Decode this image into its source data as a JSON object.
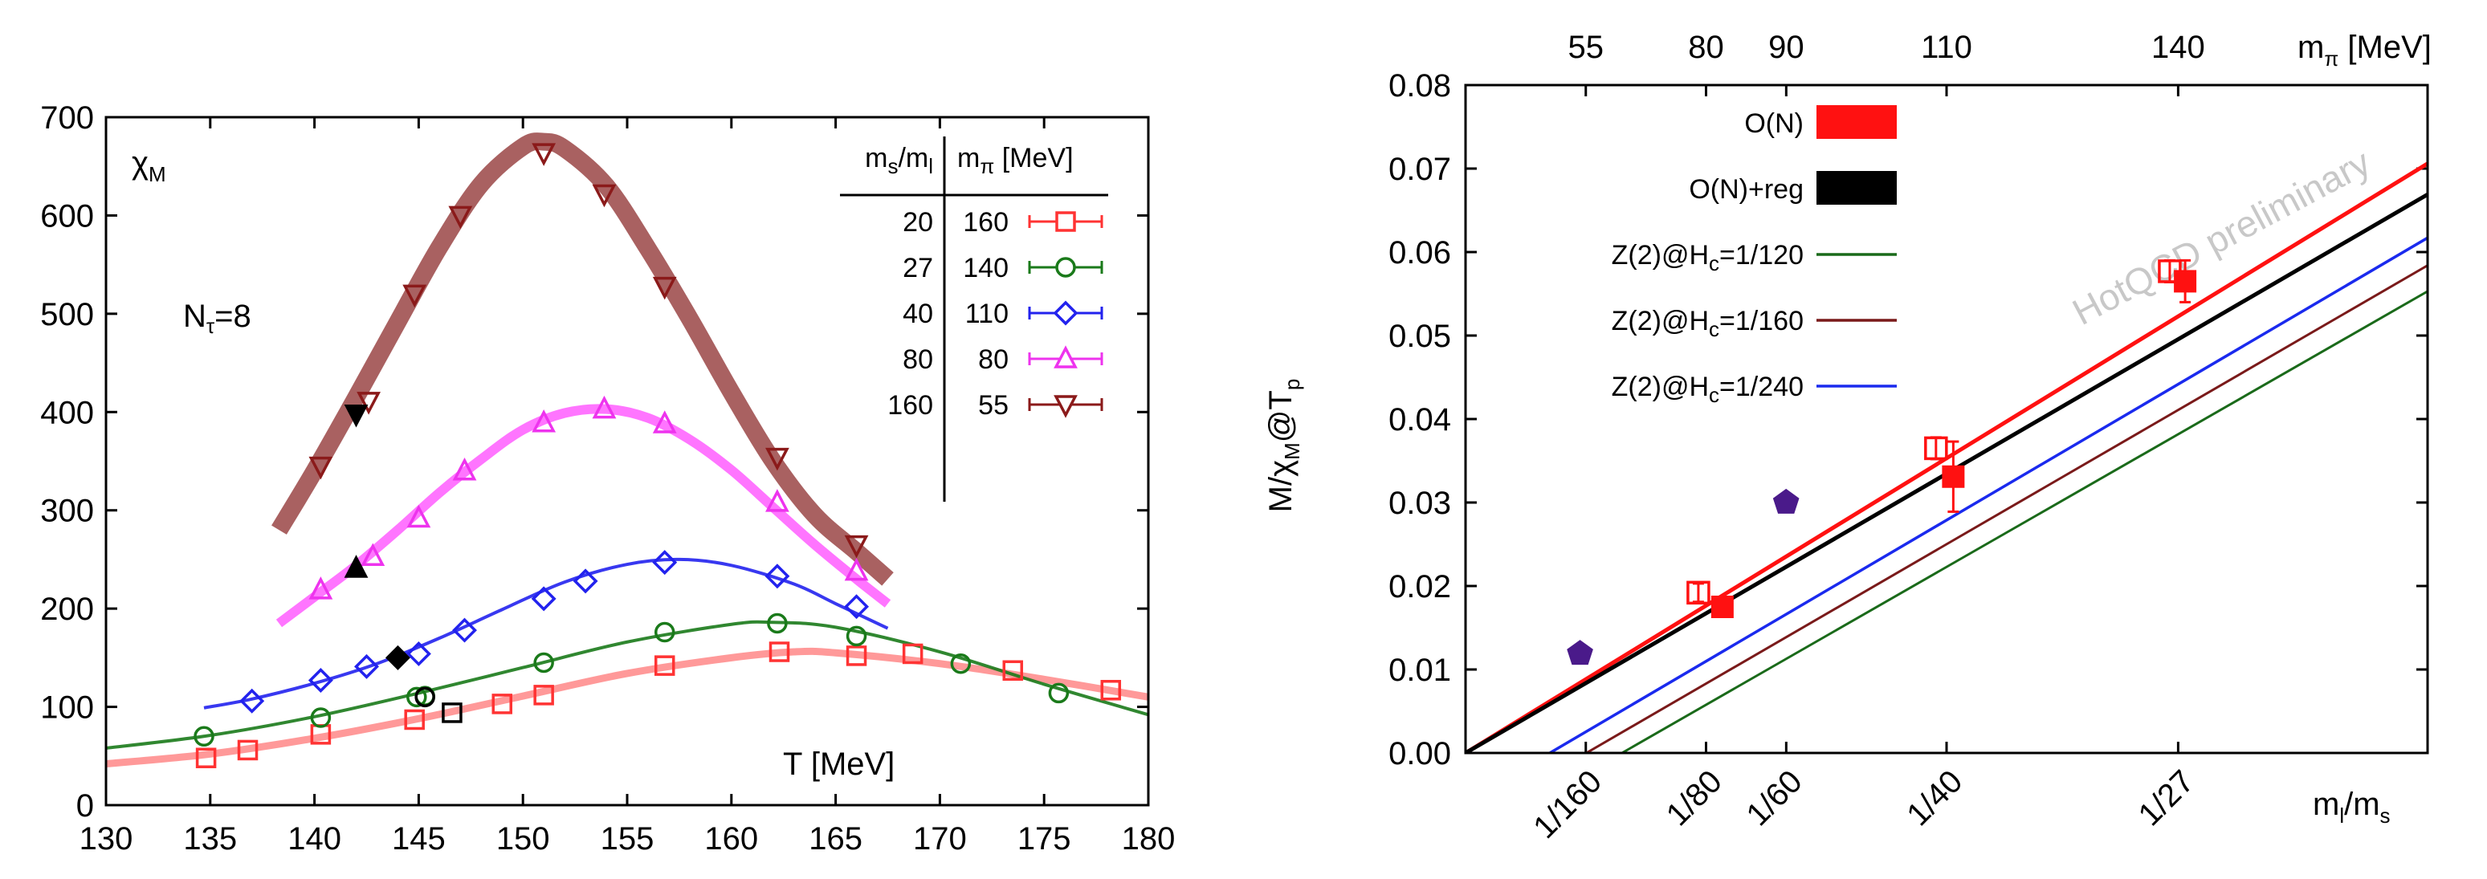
{
  "chart_data": [
    {
      "type": "line",
      "title": "",
      "ylabel_main": "χ",
      "ylabel_sub": "M",
      "annotation_main": "N",
      "annotation_sub": "τ",
      "annotation_eq": "=8",
      "xlabel": "T [MeV]",
      "xlim": [
        130,
        180
      ],
      "ylim": [
        0,
        700
      ],
      "xticks": [
        "130",
        "135",
        "140",
        "145",
        "150",
        "155",
        "160",
        "165",
        "170",
        "175",
        "180"
      ],
      "yticks": [
        "0",
        "100",
        "200",
        "300",
        "400",
        "500",
        "600",
        "700"
      ],
      "legend": {
        "col1_header_main": "m",
        "col1_header_sub1": "s",
        "col1_header_slash": "/m",
        "col1_header_sub2": "l",
        "col2_header_main": "m",
        "col2_header_sub": "π",
        "col2_header_unit": " [MeV]",
        "rows": [
          {
            "ratio": "20",
            "mpi": "160",
            "color": "#ff3333",
            "marker": "square"
          },
          {
            "ratio": "27",
            "mpi": "140",
            "color": "#1a7a1a",
            "marker": "circle"
          },
          {
            "ratio": "40",
            "mpi": "110",
            "color": "#2222ee",
            "marker": "diamond"
          },
          {
            "ratio": "80",
            "mpi": "80",
            "color": "#ee33ee",
            "marker": "triangle-up"
          },
          {
            "ratio": "160",
            "mpi": "55",
            "color": "#8b1a1a",
            "marker": "triangle-down"
          }
        ]
      },
      "series": [
        {
          "name": "ms/ml=20",
          "color": "#ff3333",
          "band": "#ff8080",
          "marker": "square",
          "x": [
            134.8,
            136.8,
            140.3,
            144.8,
            149.0,
            151.0,
            156.8,
            162.3,
            166.0,
            168.7,
            173.5,
            178.2
          ],
          "y": [
            48,
            56,
            72,
            87,
            103,
            112,
            142,
            156,
            152,
            154,
            137,
            117
          ],
          "curve_x": [
            130,
            135,
            140,
            145,
            150,
            155,
            160,
            163,
            165,
            170,
            175,
            180
          ],
          "curve_y": [
            42,
            52,
            68,
            88,
            111,
            134,
            150,
            156,
            155,
            144,
            128,
            110
          ]
        },
        {
          "name": "ms/ml=27",
          "color": "#1a7a1a",
          "band": "#1a7a1a",
          "marker": "circle",
          "x": [
            134.7,
            140.3,
            144.9,
            145.3,
            151.0,
            156.8,
            162.2,
            166.0,
            171.0,
            175.7
          ],
          "y": [
            70,
            89,
            110,
            111,
            145,
            176,
            185,
            172,
            144,
            114
          ],
          "curve_x": [
            130,
            135,
            140,
            145,
            150,
            155,
            160,
            162,
            165,
            170,
            175,
            180
          ],
          "curve_y": [
            58,
            71,
            90,
            114,
            140,
            166,
            184,
            186,
            181,
            156,
            123,
            92
          ]
        },
        {
          "name": "ms/ml=40",
          "color": "#2222ee",
          "band": "#2222ee",
          "marker": "diamond",
          "x": [
            137.0,
            140.3,
            142.5,
            145.0,
            147.2,
            151.0,
            153.0,
            156.8,
            162.2,
            166.0
          ],
          "y": [
            106,
            127,
            141,
            154,
            178,
            210,
            228,
            247,
            233,
            202
          ],
          "curve_x": [
            134.7,
            137,
            140,
            143,
            146,
            149,
            152,
            155,
            157.5,
            160,
            163,
            165,
            167.5
          ],
          "curve_y": [
            99,
            108,
            124,
            144,
            170,
            199,
            227,
            245,
            250,
            244,
            225,
            205,
            180
          ]
        },
        {
          "name": "ms/ml=80",
          "color": "#ee33ee",
          "band": "#ff66ff",
          "marker": "triangle-up",
          "x": [
            140.3,
            142.8,
            145.0,
            147.2,
            151.0,
            153.9,
            156.8,
            162.2,
            166.0
          ],
          "y": [
            219,
            253,
            292,
            340,
            389,
            403,
            388,
            308,
            238
          ],
          "curve_x": [
            138.3,
            140,
            142,
            144,
            146,
            148,
            150,
            152,
            154,
            156,
            158,
            160,
            162,
            164,
            166,
            167.5
          ],
          "curve_y": [
            185,
            212,
            244,
            280,
            318,
            352,
            382,
            399,
            403,
            394,
            372,
            341,
            303,
            265,
            230,
            205
          ]
        },
        {
          "name": "ms/ml=160",
          "color": "#8b1a1a",
          "band": "#a05050",
          "marker": "triangle-down",
          "x": [
            140.3,
            142.6,
            144.8,
            147.0,
            151.0,
            153.9,
            156.8,
            162.2,
            166.0
          ],
          "y": [
            345,
            411,
            520,
            600,
            664,
            622,
            528,
            354,
            265
          ],
          "curve_x": [
            138.3,
            140,
            142,
            144,
            146,
            148,
            150,
            151,
            152,
            154,
            156,
            158,
            160,
            162,
            164,
            166,
            167.5
          ],
          "curve_y": [
            280,
            340,
            415,
            492,
            568,
            632,
            670,
            675,
            668,
            630,
            566,
            495,
            420,
            350,
            295,
            258,
            230
          ]
        }
      ],
      "black_points": [
        {
          "x": 142.0,
          "y": 398,
          "marker": "triangle-down"
        },
        {
          "x": 142.0,
          "y": 241,
          "marker": "triangle-up"
        },
        {
          "x": 144.0,
          "y": 150,
          "marker": "diamond"
        },
        {
          "x": 145.3,
          "y": 110,
          "marker": "circle"
        },
        {
          "x": 146.6,
          "y": 94,
          "marker": "square"
        }
      ]
    },
    {
      "type": "line",
      "title": "",
      "ylabel_main": "M/χ",
      "ylabel_sub1": "M",
      "ylabel_mid": "@T",
      "ylabel_sub2": "p",
      "xlabel_main": "m",
      "xlabel_sub1": "l",
      "xlabel_slash": "/m",
      "xlabel_sub2": "s",
      "top_xlabel_main": "m",
      "top_xlabel_sub": "π",
      "top_xlabel_unit": " [MeV]",
      "xlim": [
        0,
        0.05
      ],
      "ylim": [
        0,
        0.08
      ],
      "yticks": [
        "0.00",
        "0.01",
        "0.02",
        "0.03",
        "0.04",
        "0.05",
        "0.06",
        "0.07",
        "0.08"
      ],
      "xticks": [
        {
          "label": "1/160",
          "value": 0.00625
        },
        {
          "label": "1/80",
          "value": 0.0125
        },
        {
          "label": "1/60",
          "value": 0.016667
        },
        {
          "label": "1/40",
          "value": 0.025
        },
        {
          "label": "1/27",
          "value": 0.037037
        }
      ],
      "top_ticks": [
        {
          "label": "55",
          "value": 0.00625
        },
        {
          "label": "80",
          "value": 0.0125
        },
        {
          "label": "90",
          "value": 0.016667
        },
        {
          "label": "110",
          "value": 0.025
        },
        {
          "label": "140",
          "value": 0.037037
        }
      ],
      "watermark": "HotQCD preliminary",
      "legend": [
        {
          "label_main": "O(N)",
          "label_sub": "",
          "label_tail": "",
          "color": "#ff1111",
          "style": "box"
        },
        {
          "label_main": "O(N)+reg",
          "label_sub": "",
          "label_tail": "",
          "color": "#000000",
          "style": "box"
        },
        {
          "label_main": "Z(2)@H",
          "label_sub": "c",
          "label_tail": "=1/120",
          "color": "#1a6a1a",
          "style": "line"
        },
        {
          "label_main": "Z(2)@H",
          "label_sub": "c",
          "label_tail": "=1/160",
          "color": "#7a1a1a",
          "style": "line"
        },
        {
          "label_main": "Z(2)@H",
          "label_sub": "c",
          "label_tail": "=1/240",
          "color": "#1a2aee",
          "style": "line"
        }
      ],
      "lines": [
        {
          "name": "O(N)",
          "color": "#ff1111",
          "x": [
            0,
            0.05
          ],
          "y": [
            0,
            0.0706
          ],
          "width": 5
        },
        {
          "name": "O(N)+reg",
          "color": "#000000",
          "x": [
            0,
            0.05
          ],
          "y": [
            0,
            0.0669
          ],
          "width": 5
        },
        {
          "name": "Z(2)@Hc=1/240",
          "color": "#1a2aee",
          "x": [
            0.00438,
            0.05
          ],
          "y": [
            0,
            0.0617
          ],
          "width": 3.5
        },
        {
          "name": "Z(2)@Hc=1/160",
          "color": "#7a1a1a",
          "x": [
            0.00628,
            0.05
          ],
          "y": [
            0,
            0.0584
          ],
          "width": 3
        },
        {
          "name": "Z(2)@Hc=1/120",
          "color": "#1a6a1a",
          "x": [
            0.00813,
            0.05
          ],
          "y": [
            0,
            0.0553
          ],
          "width": 3
        }
      ],
      "points_open_red": [
        {
          "x": 0.0121,
          "y": 0.0192,
          "err": 0.0011
        },
        {
          "x": 0.02445,
          "y": 0.0365,
          "err": 0.0013
        },
        {
          "x": 0.0366,
          "y": 0.0577,
          "err": 0.0013
        }
      ],
      "points_filled_red": [
        {
          "x": 0.01335,
          "y": 0.0175,
          "err": 0.0006
        },
        {
          "x": 0.02535,
          "y": 0.0331,
          "err": 0.0042
        },
        {
          "x": 0.0374,
          "y": 0.0565,
          "err": 0.0025
        }
      ],
      "points_purple": [
        {
          "x": 0.00595,
          "y": 0.0119
        },
        {
          "x": 0.01666,
          "y": 0.03
        }
      ]
    }
  ]
}
